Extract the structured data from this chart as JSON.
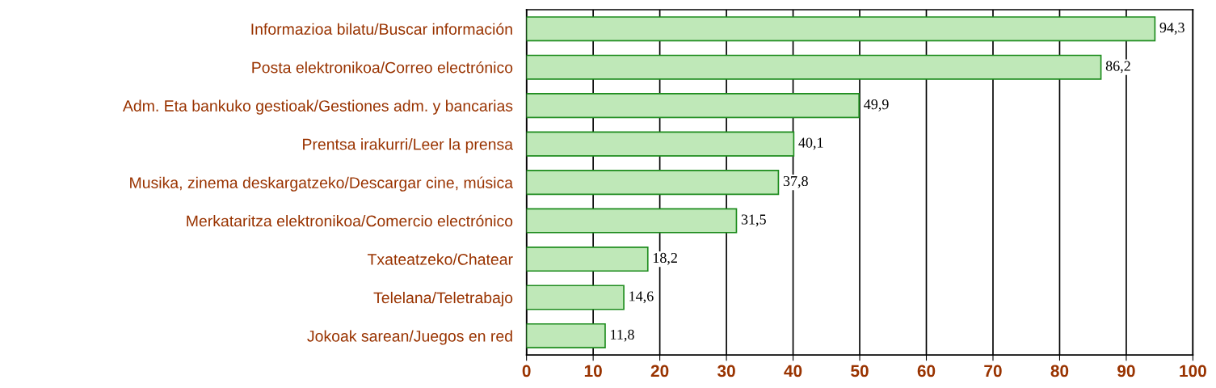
{
  "chart_data": {
    "type": "bar",
    "orientation": "horizontal",
    "categories": [
      "Informazioa bilatu/Buscar información",
      "Posta elektronikoa/Correo electrónico",
      "Adm. Eta bankuko gestioak/Gestiones adm. y bancarias",
      "Prentsa irakurri/Leer la prensa",
      "Musika, zinema deskargatzeko/Descargar cine, música",
      "Merkataritza elektronikoa/Comercio electrónico",
      "Txateatzeko/Chatear",
      "Telelana/Teletrabajo",
      "Jokoak sarean/Juegos en red"
    ],
    "values": [
      94.3,
      86.2,
      49.9,
      40.1,
      37.8,
      31.5,
      18.2,
      14.6,
      11.8
    ],
    "value_labels": [
      "94,3",
      "86,2",
      "49,9",
      "40,1",
      "37,8",
      "31,5",
      "18,2",
      "14,6",
      "11,8"
    ],
    "color": "#bfe8b8",
    "xlim": [
      0,
      100
    ],
    "xticks": [
      0,
      10,
      20,
      30,
      40,
      50,
      60,
      70,
      80,
      90,
      100
    ],
    "grid": "x"
  }
}
